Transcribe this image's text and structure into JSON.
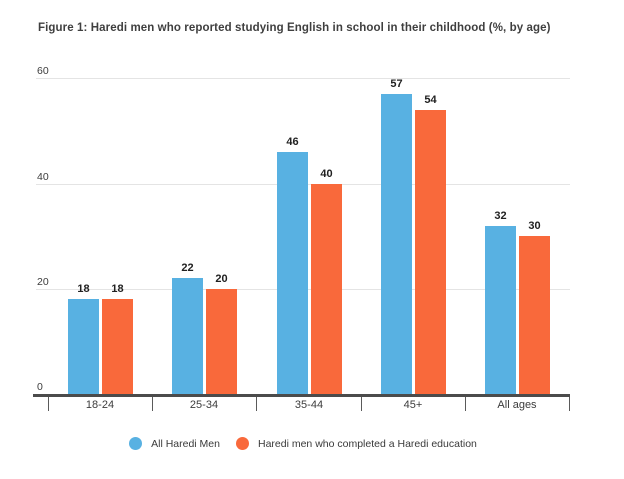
{
  "chart_data": {
    "type": "bar",
    "title": "Figure 1: Haredi men who reported studying English in school in their childhood (%, by age)",
    "categories": [
      "18-24",
      "25-34",
      "35-44",
      "45+",
      "All ages"
    ],
    "series": [
      {
        "name": "All Haredi Men",
        "color": "#58B1E2",
        "values": [
          18,
          22,
          46,
          57,
          32
        ]
      },
      {
        "name": "Haredi men who completed a Haredi education",
        "color": "#F9693B",
        "values": [
          18,
          20,
          40,
          54,
          30
        ]
      }
    ],
    "xlabel": "",
    "ylabel": "",
    "y_ticks": [
      0,
      20,
      40,
      60
    ],
    "ylim": [
      0,
      60
    ],
    "grid": true,
    "legend_position": "bottom",
    "value_labels": true
  },
  "colors": {
    "background": "#ffffff",
    "axis": "#4b4b4b",
    "gridline": "#e4e4e4",
    "title_text": "#3f3f3f",
    "category_text": "#3c3c3c",
    "value_text": "#212121",
    "legend_text": "#3a3a3a"
  }
}
